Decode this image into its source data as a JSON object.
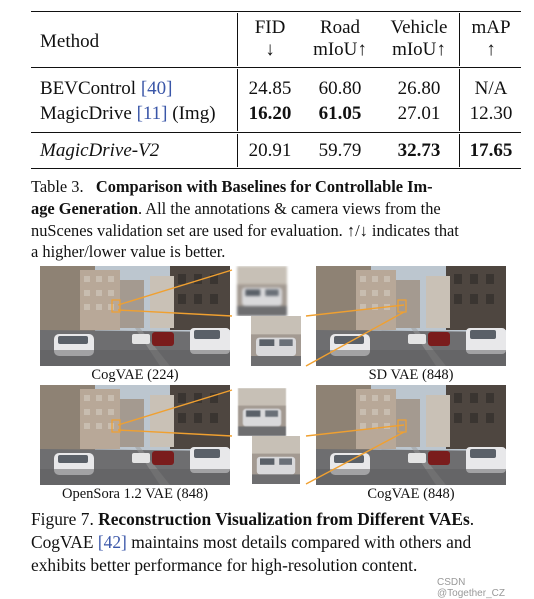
{
  "table": {
    "headers": {
      "method": "Method",
      "fid_line1": "FID",
      "fid_line2": "↓",
      "road_line1": "Road",
      "road_line2": "mIoU↑",
      "vehicle_line1": "Vehicle",
      "vehicle_line2": "mIoU↑",
      "map_line1": "mAP",
      "map_line2": "↑"
    },
    "rows": [
      {
        "method": "BEVControl",
        "cite": "[40]",
        "suffix": "",
        "fid": "24.85",
        "road": "60.80",
        "vehicle": "26.80",
        "map": "N/A"
      },
      {
        "method": "MagicDrive",
        "cite": "[11]",
        "suffix": "(Img)",
        "fid": "16.20",
        "road": "61.05",
        "vehicle": "27.01",
        "map": "12.30"
      }
    ],
    "ours": {
      "method": "MagicDrive-V2",
      "fid": "20.91",
      "road": "59.79",
      "vehicle": "32.73",
      "map": "17.65"
    }
  },
  "table_caption": {
    "label": "Table 3.",
    "title_part1": "Comparison with Baselines for Controllable Im-",
    "title_part2": "age Generation",
    "line2_rest": ". All the annotations & camera views from the",
    "line3": "nuScenes validation set are used for evaluation. ↑/↓ indicates that",
    "line4": "a higher/lower value is better."
  },
  "figure": {
    "panels": [
      {
        "label": "CogVAE (224)"
      },
      {
        "label": "SD VAE (848)"
      },
      {
        "label": "OpenSora 1.2 VAE (848)"
      },
      {
        "label": "CogVAE (848)"
      }
    ],
    "colors": {
      "connector": "#f0a030",
      "sky": "#b9c3cc",
      "road": "#6e6e70",
      "building_light": "#b9a99a",
      "building_dark": "#4e4640",
      "car_white": "#e8e8ea",
      "car_red": "#7a1c1c"
    }
  },
  "figure_caption": {
    "label": "Figure 7.",
    "title": "Reconstruction Visualization from Different VAEs",
    "title_end": ".",
    "line2_start": "CogVAE",
    "line2_cite": "[42]",
    "line2_rest": "maintains most details compared with others and",
    "line3": "exhibits better performance for high-resolution content."
  },
  "watermark": "CSDN @Together_CZ"
}
